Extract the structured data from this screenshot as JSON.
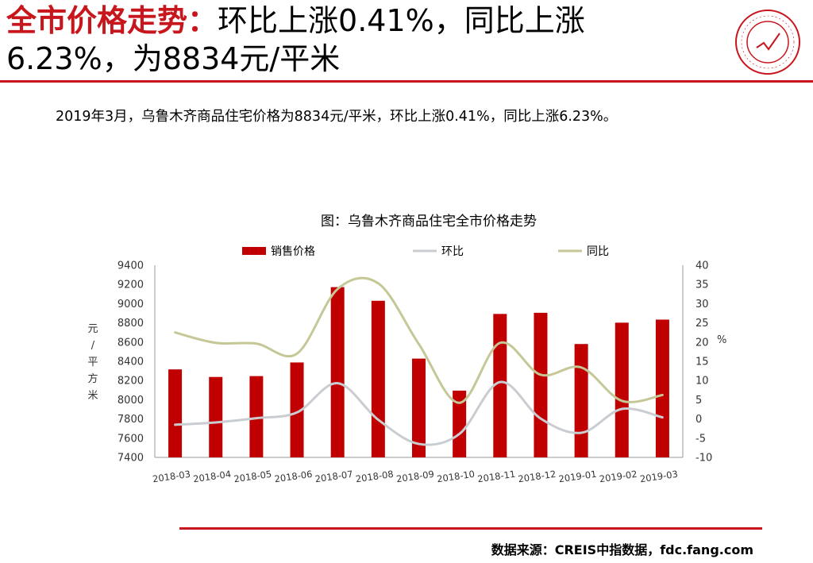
{
  "header": {
    "title_highlight": "全市价格走势：",
    "title_line1_rest": "环比上涨0.41%，同比上涨",
    "title_line2": "6.23%，为8834元/平米"
  },
  "summary": "2019年3月，乌鲁木齐商品住宅价格为8834元/平米，环比上涨0.41%，同比上涨6.23%。",
  "source": "数据来源：CREIS中指数据，fdc.fang.com",
  "colors": {
    "brand": "#c8161d",
    "bar": "#c00000",
    "mom": "#c9cdd1",
    "yoy": "#c5c896"
  },
  "chart_data": {
    "type": "bar",
    "title": "图：乌鲁木齐商品住宅全市价格走势",
    "categories": [
      "2018-03",
      "2018-04",
      "2018-05",
      "2018-06",
      "2018-07",
      "2018-08",
      "2018-09",
      "2018-10",
      "2018-11",
      "2018-12",
      "2019-01",
      "2019-02",
      "2019-03"
    ],
    "ylabel_left": "元/平方米",
    "ylabel_right": "%",
    "ylim_left": [
      7400,
      9400
    ],
    "ylim_right": [
      -10,
      40
    ],
    "yticks_left": [
      7400,
      7600,
      7800,
      8000,
      8200,
      8400,
      8600,
      8800,
      9000,
      9200,
      9400
    ],
    "yticks_right": [
      -10,
      -5,
      0,
      5,
      10,
      15,
      20,
      25,
      30,
      35,
      40
    ],
    "legend_position": "top",
    "grid": false,
    "series": [
      {
        "name": "销售价格",
        "type": "bar",
        "axis": "left",
        "values": [
          8316,
          8237,
          8246,
          8388,
          9172,
          9030,
          8428,
          8095,
          8893,
          8905,
          8580,
          8802,
          8834
        ]
      },
      {
        "name": "环比",
        "type": "line",
        "axis": "right",
        "values": [
          -1.5,
          -0.9,
          0.2,
          1.7,
          9.3,
          -0.2,
          -6.5,
          -3.9,
          9.6,
          0.1,
          -3.6,
          2.6,
          0.41
        ]
      },
      {
        "name": "同比",
        "type": "line",
        "axis": "right",
        "values": [
          22.5,
          19.8,
          19.6,
          17.0,
          33.8,
          35.3,
          19.5,
          4.2,
          19.8,
          11.5,
          13.4,
          4.7,
          6.23
        ]
      }
    ]
  }
}
